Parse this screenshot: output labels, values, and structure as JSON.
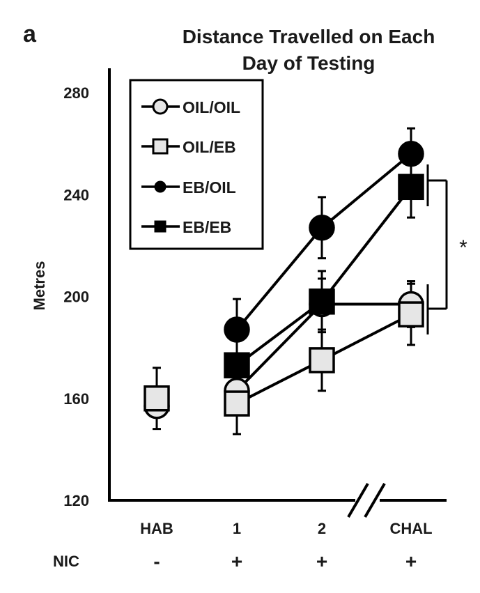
{
  "chart_data": {
    "type": "line",
    "panel_label": "a",
    "title_line1": "Distance Travelled on Each",
    "title_line2": "Day of Testing",
    "xlabel": "",
    "ylabel": "Metres",
    "ylim": [
      120,
      280
    ],
    "yticks": [
      120,
      160,
      200,
      240,
      280
    ],
    "categories": [
      "HAB",
      "1",
      "2",
      "CHAL"
    ],
    "x_axis_break": "between 2 and CHAL",
    "row_label": "NIC",
    "row_values": [
      "-",
      "+",
      "+",
      "+"
    ],
    "significance_marker": "*",
    "legend_position": "top-left",
    "series": [
      {
        "name": "OIL/OIL",
        "marker": "circle",
        "fill": "#e6e6e6",
        "values": [
          157,
          163,
          197,
          197
        ],
        "err": [
          null,
          8,
          10,
          9
        ]
      },
      {
        "name": "OIL/EB",
        "marker": "square",
        "fill": "#e6e6e6",
        "values": [
          160,
          158,
          175,
          193
        ],
        "err": [
          12,
          12,
          12,
          12
        ]
      },
      {
        "name": "EB/OIL",
        "marker": "circle",
        "fill": "#000000",
        "values": [
          null,
          187,
          227,
          256
        ],
        "err": [
          null,
          12,
          12,
          10
        ]
      },
      {
        "name": "EB/EB",
        "marker": "square",
        "fill": "#000000",
        "values": [
          null,
          173,
          198,
          243
        ],
        "err": [
          null,
          10,
          12,
          12
        ]
      }
    ]
  }
}
